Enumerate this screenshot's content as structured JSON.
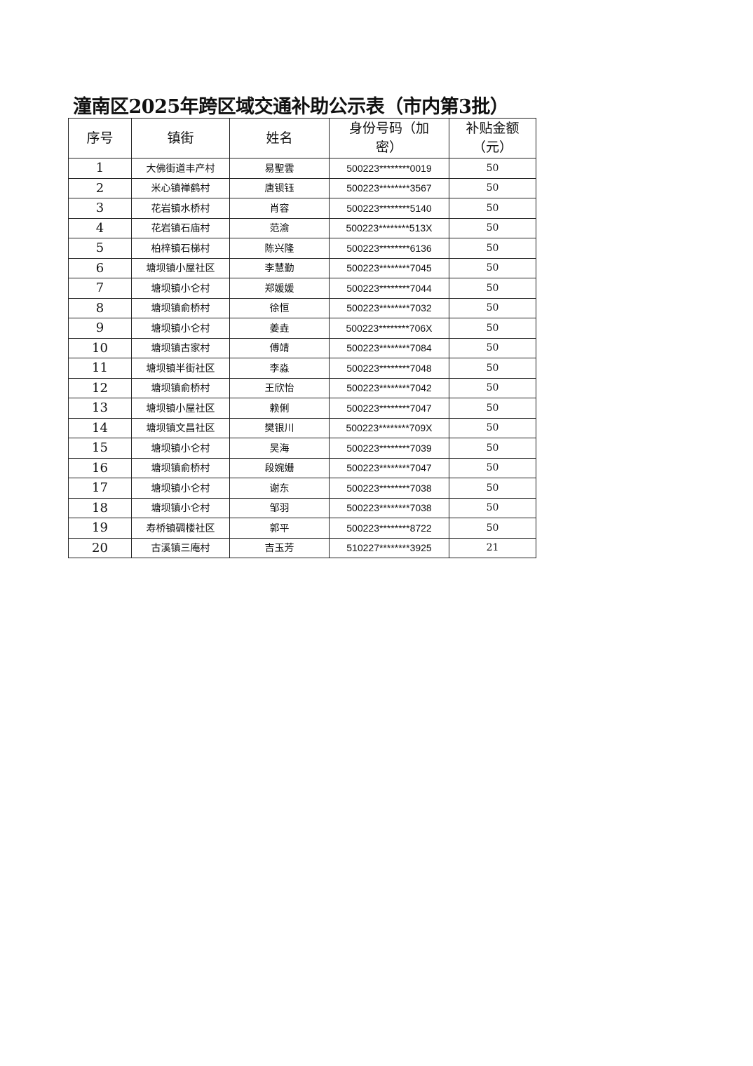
{
  "title": "潼南区2025年跨区域交通补助公示表（市内第3批）",
  "headers": [
    "序号",
    "镇街",
    "姓名",
    "身份号码（加密）",
    "补贴金额（元）"
  ],
  "rows": [
    [
      "1",
      "大佛街道丰产村",
      "易聖雲",
      "500223********0019",
      "50"
    ],
    [
      "2",
      "米心镇禅鹤村",
      "唐钡钰",
      "500223********3567",
      "50"
    ],
    [
      "3",
      "花岩镇水桥村",
      "肖容",
      "500223********5140",
      "50"
    ],
    [
      "4",
      "花岩镇石庙村",
      "范渝",
      "500223********513X",
      "50"
    ],
    [
      "5",
      "柏梓镇石梯村",
      "陈兴隆",
      "500223********6136",
      "50"
    ],
    [
      "6",
      "塘坝镇小屋社区",
      "李慧勤",
      "500223********7045",
      "50"
    ],
    [
      "7",
      "塘坝镇小仑村",
      "郑媛媛",
      "500223********7044",
      "50"
    ],
    [
      "8",
      "塘坝镇俞桥村",
      "徐恒",
      "500223********7032",
      "50"
    ],
    [
      "9",
      "塘坝镇小仑村",
      "姜垚",
      "500223********706X",
      "50"
    ],
    [
      "10",
      "塘坝镇古家村",
      "傅靖",
      "500223********7084",
      "50"
    ],
    [
      "11",
      "塘坝镇半街社区",
      "李淼",
      "500223********7048",
      "50"
    ],
    [
      "12",
      "塘坝镇俞桥村",
      "王欣怡",
      "500223********7042",
      "50"
    ],
    [
      "13",
      "塘坝镇小屋社区",
      "赖俐",
      "500223********7047",
      "50"
    ],
    [
      "14",
      "塘坝镇文昌社区",
      "樊银川",
      "500223********709X",
      "50"
    ],
    [
      "15",
      "塘坝镇小仑村",
      "吴海",
      "500223********7039",
      "50"
    ],
    [
      "16",
      "塘坝镇俞桥村",
      "段婉姗",
      "500223********7047",
      "50"
    ],
    [
      "17",
      "塘坝镇小仑村",
      "谢东",
      "500223********7038",
      "50"
    ],
    [
      "18",
      "塘坝镇小仑村",
      "邹羽",
      "500223********7038",
      "50"
    ],
    [
      "19",
      "寿桥镇碉楼社区",
      "郭平",
      "500223********8722",
      "50"
    ],
    [
      "20",
      "古溪镇三庵村",
      "吉玉芳",
      "510227********3925",
      "21"
    ]
  ]
}
